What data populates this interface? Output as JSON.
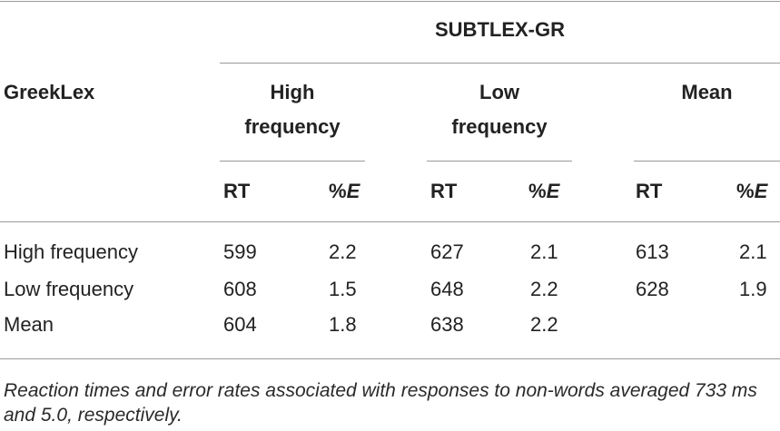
{
  "table": {
    "row_header": "GreekLex",
    "column_group": "SUBTLEX-GR",
    "groups": [
      {
        "line1": "High",
        "line2": "frequency"
      },
      {
        "line1": "Low",
        "line2": "frequency"
      },
      {
        "line1": "",
        "line2": "Mean"
      }
    ],
    "sub_columns": {
      "rt": "RT",
      "error_prefix": "%",
      "error_symbol": "E"
    },
    "rows": [
      {
        "label": "High frequency",
        "cells": [
          "599",
          "2.2",
          "627",
          "2.1",
          "613",
          "2.1"
        ]
      },
      {
        "label": "Low frequency",
        "cells": [
          "608",
          "1.5",
          "648",
          "2.2",
          "628",
          "1.9"
        ]
      },
      {
        "label": "Mean",
        "cells": [
          "604",
          "1.8",
          "638",
          "2.2",
          "",
          ""
        ]
      }
    ]
  },
  "footnote": "Reaction times and error rates associated with responses to non-words averaged 733 ms and 5.0, respectively."
}
